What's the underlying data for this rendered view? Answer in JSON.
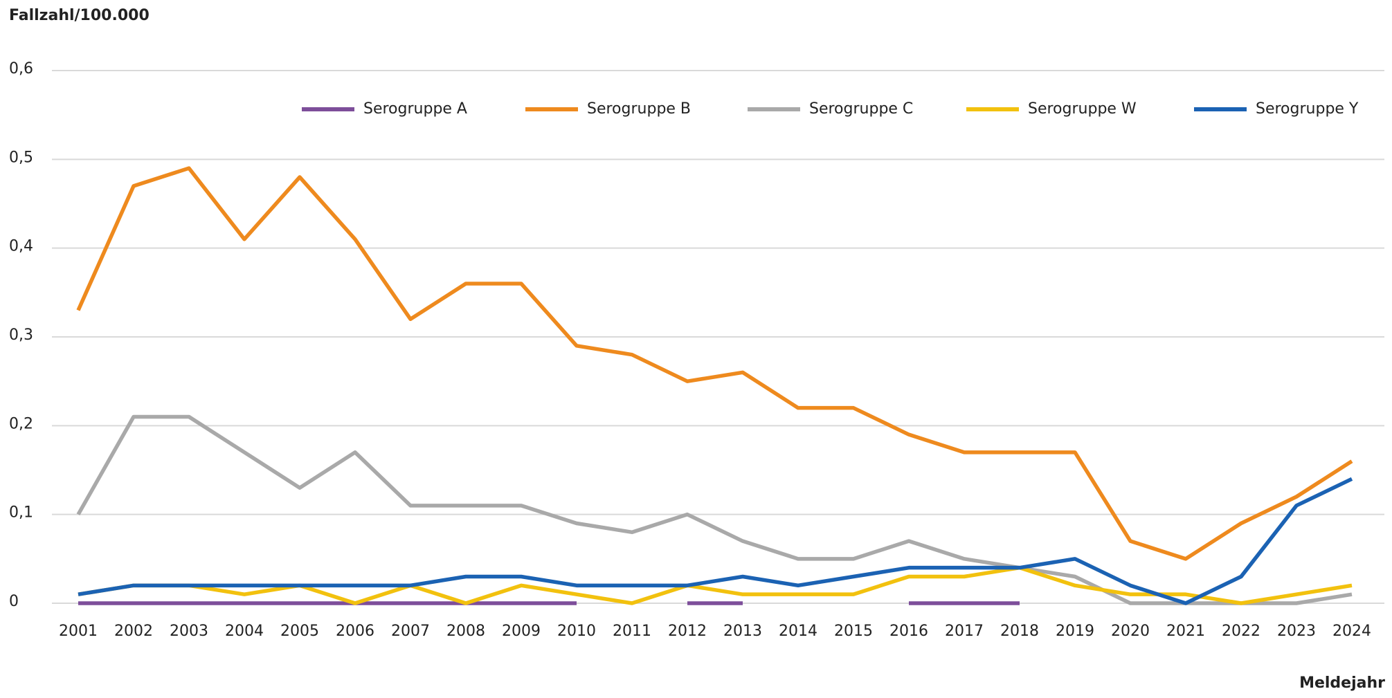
{
  "chart_data": {
    "type": "line",
    "title": "Fallzahl/100.000",
    "x_label": "Meldejahr",
    "categories": [
      "2001",
      "2002",
      "2003",
      "2004",
      "2005",
      "2006",
      "2007",
      "2008",
      "2009",
      "2010",
      "2011",
      "2012",
      "2013",
      "2014",
      "2015",
      "2016",
      "2017",
      "2018",
      "2019",
      "2020",
      "2021",
      "2022",
      "2023",
      "2024"
    ],
    "ylim": [
      0,
      0.6
    ],
    "yticks": [
      0,
      {
        "value": 0.1,
        "label": "0,1"
      },
      {
        "value": 0.2,
        "label": "0,2"
      },
      {
        "value": 0.3,
        "label": "0,3"
      },
      {
        "value": 0.4,
        "label": "0,4"
      },
      {
        "value": 0.5,
        "label": "0,5"
      },
      {
        "value": 0.6,
        "label": "0,6"
      }
    ],
    "grid": true,
    "legend": "top",
    "series": [
      {
        "name": "Serogruppe A",
        "color": "#7d4e9a",
        "values": [
          0,
          0,
          0,
          0,
          0,
          0,
          0,
          0,
          0,
          0,
          null,
          0,
          0,
          null,
          null,
          0,
          0,
          0,
          null,
          null,
          null,
          null,
          null,
          null
        ]
      },
      {
        "name": "Serogruppe B",
        "color": "#ee8a1e",
        "values": [
          0.33,
          0.47,
          0.49,
          0.41,
          0.48,
          0.41,
          0.32,
          0.36,
          0.36,
          0.29,
          0.28,
          0.25,
          0.26,
          0.22,
          0.22,
          0.19,
          0.17,
          0.17,
          0.17,
          0.07,
          0.05,
          0.09,
          0.12,
          0.16
        ]
      },
      {
        "name": "Serogruppe C",
        "color": "#a9a9a9",
        "values": [
          0.1,
          0.21,
          0.21,
          0.17,
          0.13,
          0.17,
          0.11,
          0.11,
          0.11,
          0.09,
          0.08,
          0.1,
          0.07,
          0.05,
          0.05,
          0.07,
          0.05,
          0.04,
          0.03,
          0,
          0,
          0,
          0,
          0.01
        ]
      },
      {
        "name": "Serogruppe W",
        "color": "#f2c10e",
        "values": [
          0.01,
          0.02,
          0.02,
          0.01,
          0.02,
          0,
          0.02,
          0,
          0.02,
          0.01,
          0,
          0.02,
          0.01,
          0.01,
          0.01,
          0.03,
          0.03,
          0.04,
          0.02,
          0.01,
          0.01,
          0,
          0.01,
          0.02
        ]
      },
      {
        "name": "Serogruppe Y",
        "color": "#1b62b3",
        "values": [
          0.01,
          0.02,
          0.02,
          0.02,
          0.02,
          0.02,
          0.02,
          0.03,
          0.03,
          0.02,
          0.02,
          0.02,
          0.03,
          0.02,
          0.03,
          0.04,
          0.04,
          0.04,
          0.05,
          0.02,
          0,
          0.03,
          0.11,
          0.14
        ]
      }
    ]
  }
}
